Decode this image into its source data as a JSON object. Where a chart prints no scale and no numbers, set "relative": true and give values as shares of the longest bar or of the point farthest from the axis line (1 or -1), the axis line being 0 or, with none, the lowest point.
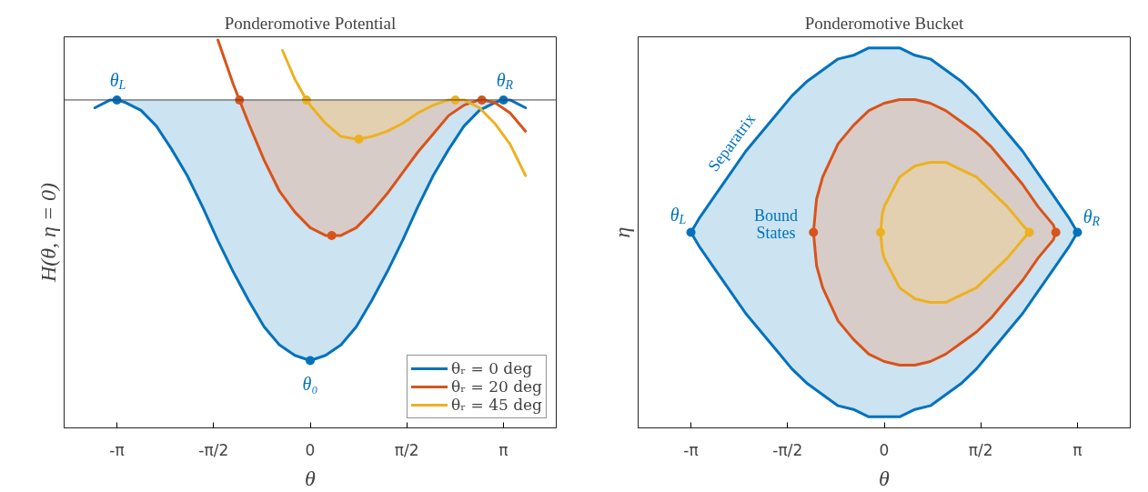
{
  "chart_data": [
    {
      "type": "line",
      "title": "Ponderomotive Potential",
      "xlabel": "θ",
      "ylabel": "H(θ, η = 0)",
      "relative": true,
      "xlim": [
        -4,
        4
      ],
      "xticks": [
        {
          "value": -3.1416,
          "label": "-π"
        },
        {
          "value": -1.5708,
          "label": "-π/2"
        },
        0,
        {
          "value": 1.5708,
          "label": "π/2"
        },
        {
          "value": 3.1416,
          "label": "π"
        }
      ],
      "grid": false,
      "legend": "bottom right",
      "marker": "none",
      "line_style": "solid",
      "ref_lines": [
        {
          "axis": "y",
          "value": 0,
          "color": "#404040"
        }
      ],
      "annotations": [
        {
          "text": "θ$_{L}$",
          "x": -3.1416,
          "y": 0
        },
        {
          "text": "θ$_{R}$",
          "x": 3.1416,
          "y": 0
        },
        {
          "text": "θ₀",
          "x": 0,
          "y": -1
        }
      ],
      "series": [
        {
          "type": "scatter",
          "marker": "circle",
          "color": "#0072bd",
          "x": [
            -3.1416,
            0,
            3.1416
          ],
          "values": [
            0,
            -1,
            0
          ]
        },
        {
          "type": "scatter",
          "marker": "circle",
          "color": "#d95319",
          "x": [
            -1.15,
            0.35,
            2.79
          ],
          "values": [
            0,
            -0.52,
            0
          ]
        },
        {
          "type": "scatter",
          "marker": "circle",
          "color": "#edb120",
          "x": [
            -0.06,
            0.79,
            2.36
          ],
          "values": [
            0,
            -0.15,
            0
          ]
        },
        {
          "name": "θᵣ = 0 deg",
          "color": "#0072bd",
          "x": [
            -3.5,
            -3.25,
            -3.1416,
            -3,
            -2.75,
            -2.5,
            -2.25,
            -2,
            -1.75,
            -1.5,
            -1.25,
            -1,
            -0.75,
            -0.5,
            -0.25,
            0,
            0.25,
            0.5,
            0.75,
            1,
            1.25,
            1.5,
            1.75,
            2,
            2.25,
            2.5,
            2.75,
            3,
            3.1416,
            3.25,
            3.5
          ],
          "values": [
            -0.03,
            0.0,
            0.0,
            -0.01,
            -0.04,
            -0.1,
            -0.19,
            -0.29,
            -0.41,
            -0.54,
            -0.66,
            -0.77,
            -0.87,
            -0.94,
            -0.98,
            -1.0,
            -0.98,
            -0.94,
            -0.87,
            -0.77,
            -0.66,
            -0.54,
            -0.41,
            -0.29,
            -0.19,
            -0.1,
            -0.04,
            -0.01,
            0.0,
            0.0,
            -0.03
          ],
          "lower": [
            null,
            null,
            0.0,
            -0.01,
            -0.04,
            -0.1,
            -0.19,
            -0.29,
            -0.41,
            -0.54,
            -0.66,
            -0.77,
            -0.87,
            -0.94,
            -0.98,
            -1.0,
            -0.98,
            -0.94,
            -0.87,
            -0.77,
            -0.66,
            -0.54,
            -0.41,
            -0.29,
            -0.19,
            -0.1,
            -0.04,
            -0.01,
            0.0,
            null,
            null
          ],
          "upper": [
            null,
            null,
            0,
            0,
            0,
            0,
            0,
            0,
            0,
            0,
            0,
            0,
            0,
            0,
            0,
            0,
            0,
            0,
            0,
            0,
            0,
            0,
            0,
            0,
            0,
            0,
            0,
            0,
            0,
            null,
            null
          ]
        },
        {
          "name": "θᵣ = 20 deg",
          "color": "#d95319",
          "x": [
            -1.5,
            -1.25,
            -1.15,
            -1,
            -0.75,
            -0.5,
            -0.25,
            0,
            0.25,
            0.35,
            0.5,
            0.75,
            1,
            1.25,
            1.5,
            1.75,
            2,
            2.25,
            2.5,
            2.75,
            2.79,
            3,
            3.25,
            3.5
          ],
          "values": [
            0.23,
            0.06,
            0.0,
            -0.09,
            -0.23,
            -0.35,
            -0.43,
            -0.49,
            -0.52,
            -0.52,
            -0.52,
            -0.49,
            -0.43,
            -0.36,
            -0.28,
            -0.2,
            -0.13,
            -0.06,
            -0.02,
            0.0,
            0.0,
            -0.01,
            -0.05,
            -0.12
          ],
          "lower": [
            null,
            null,
            0.0,
            -0.09,
            -0.23,
            -0.35,
            -0.43,
            -0.49,
            -0.52,
            -0.52,
            -0.52,
            -0.49,
            -0.43,
            -0.36,
            -0.28,
            -0.2,
            -0.13,
            -0.06,
            -0.02,
            0.0,
            0.0,
            null,
            null,
            null
          ],
          "upper": [
            null,
            null,
            0,
            0,
            0,
            0,
            0,
            0,
            0,
            0,
            0,
            0,
            0,
            0,
            0,
            0,
            0,
            0,
            0,
            0,
            0,
            null,
            null,
            null
          ]
        },
        {
          "name": "θᵣ = 45 deg",
          "color": "#edb120",
          "x": [
            -0.45,
            -0.25,
            -0.06,
            0,
            0.25,
            0.5,
            0.75,
            0.79,
            1,
            1.25,
            1.5,
            1.75,
            2,
            2.25,
            2.36,
            2.5,
            2.75,
            3,
            3.25,
            3.5
          ],
          "values": [
            0.19,
            0.08,
            0.0,
            -0.02,
            -0.09,
            -0.14,
            -0.15,
            -0.15,
            -0.14,
            -0.12,
            -0.09,
            -0.05,
            -0.02,
            0.0,
            0.0,
            0.0,
            -0.03,
            -0.09,
            -0.17,
            -0.29
          ],
          "lower": [
            null,
            null,
            0.0,
            -0.02,
            -0.09,
            -0.14,
            -0.15,
            -0.15,
            -0.14,
            -0.12,
            -0.09,
            -0.05,
            -0.02,
            0.0,
            0.0,
            null,
            null,
            null,
            null,
            null
          ],
          "upper": [
            null,
            null,
            0,
            0,
            0,
            0,
            0,
            0,
            0,
            0,
            0,
            0,
            0,
            0,
            0,
            null,
            null,
            null,
            null,
            null
          ]
        }
      ]
    },
    {
      "type": "area",
      "title": "Ponderomotive Bucket",
      "xlabel": "θ",
      "ylabel": "η",
      "relative": true,
      "xlim": [
        -4,
        4
      ],
      "xticks": [
        {
          "value": -3.1416,
          "label": "-π"
        },
        {
          "value": -1.5708,
          "label": "-π/2"
        },
        0,
        {
          "value": 1.5708,
          "label": "π/2"
        },
        {
          "value": 3.1416,
          "label": "π"
        }
      ],
      "grid": false,
      "marker": "none",
      "line_style": "solid",
      "annotations": [
        {
          "text": "θ$_{L}$",
          "x": -3.1416,
          "y": 0.5
        },
        {
          "text": "θ$_{R}$",
          "x": 3.1416,
          "y": 0.5
        },
        "Separatrix",
        "Bound\nStates"
      ],
      "series": [
        {
          "type": "scatter",
          "marker": "circle",
          "color": "#0072bd",
          "x": [
            -3.1416,
            3.1416
          ],
          "values": [
            0.5,
            0.5
          ]
        },
        {
          "type": "scatter",
          "marker": "circle",
          "color": "#d95319",
          "x": [
            -1.15,
            2.79
          ],
          "values": [
            0.5,
            0.5
          ]
        },
        {
          "type": "scatter",
          "marker": "circle",
          "color": "#edb120",
          "x": [
            -0.06,
            2.36
          ],
          "values": [
            0.5,
            0.5
          ]
        },
        {
          "color": "#0072bd",
          "x": [
            -3.1416,
            -3,
            -2.75,
            -2.5,
            -2.25,
            -2,
            -1.75,
            -1.5,
            -1.25,
            -1,
            -0.75,
            -0.5,
            -0.25,
            0,
            0.25,
            0.5,
            0.75,
            1,
            1.25,
            1.5,
            1.75,
            2,
            2.25,
            2.5,
            2.75,
            3,
            3.1416,
            3,
            2.75,
            2.5,
            2.25,
            2,
            1.75,
            1.5,
            1.25,
            1,
            0.75,
            0.5,
            0.25,
            0,
            -0.25,
            -0.5,
            -0.75,
            -1,
            -1.25,
            -1.5,
            -1.75,
            -2,
            -2.25,
            -2.5,
            -2.75,
            -3,
            -3.1416
          ],
          "values": [
            0.5,
            0.54,
            0.6,
            0.66,
            0.72,
            0.77,
            0.82,
            0.87,
            0.91,
            0.94,
            0.97,
            0.98,
            1.0,
            1.0,
            1.0,
            0.98,
            0.97,
            0.94,
            0.91,
            0.87,
            0.82,
            0.77,
            0.72,
            0.66,
            0.6,
            0.54,
            0.5,
            0.46,
            0.4,
            0.34,
            0.28,
            0.23,
            0.18,
            0.13,
            0.09,
            0.06,
            0.03,
            0.02,
            0.0,
            0.0,
            0.0,
            0.02,
            0.03,
            0.06,
            0.09,
            0.13,
            0.18,
            0.23,
            0.28,
            0.34,
            0.4,
            0.46,
            0.5
          ]
        },
        {
          "color": "#d95319",
          "x": [
            -1.15,
            -1.1,
            -1,
            -0.75,
            -0.5,
            -0.25,
            0,
            0.25,
            0.5,
            0.75,
            1,
            1.25,
            1.5,
            1.75,
            2,
            2.25,
            2.5,
            2.75,
            2.79,
            2.75,
            2.5,
            2.25,
            2,
            1.75,
            1.5,
            1.25,
            1,
            0.75,
            0.5,
            0.25,
            0,
            -0.25,
            -0.5,
            -0.75,
            -1,
            -1.1,
            -1.15
          ],
          "values": [
            0.5,
            0.59,
            0.65,
            0.74,
            0.79,
            0.83,
            0.85,
            0.86,
            0.86,
            0.85,
            0.83,
            0.8,
            0.77,
            0.73,
            0.68,
            0.63,
            0.57,
            0.52,
            0.5,
            0.48,
            0.43,
            0.37,
            0.32,
            0.27,
            0.23,
            0.2,
            0.17,
            0.15,
            0.14,
            0.14,
            0.15,
            0.17,
            0.21,
            0.26,
            0.35,
            0.41,
            0.5
          ]
        },
        {
          "color": "#edb120",
          "x": [
            -0.06,
            -0.03,
            0,
            0.25,
            0.5,
            0.75,
            1,
            1.25,
            1.5,
            1.75,
            2,
            2.25,
            2.36,
            2.25,
            2,
            1.75,
            1.5,
            1.25,
            1,
            0.75,
            0.5,
            0.25,
            0,
            -0.03,
            -0.06
          ],
          "values": [
            0.5,
            0.55,
            0.57,
            0.65,
            0.68,
            0.69,
            0.69,
            0.67,
            0.65,
            0.61,
            0.57,
            0.52,
            0.5,
            0.48,
            0.43,
            0.39,
            0.35,
            0.33,
            0.31,
            0.31,
            0.32,
            0.35,
            0.43,
            0.45,
            0.5
          ]
        }
      ]
    }
  ]
}
